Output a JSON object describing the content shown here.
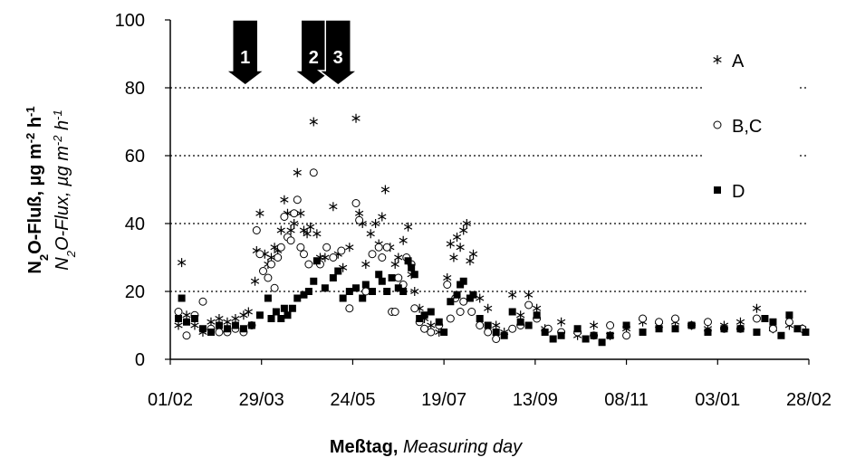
{
  "chart_data": {
    "type": "scatter",
    "xlabel": [
      "Meßtag,",
      "Measuring day"
    ],
    "ylabel": {
      "de": [
        "N",
        "2",
        "O-Fluß, µg m",
        "-2",
        " h",
        "-1"
      ],
      "en": [
        "N",
        "2",
        "O-Flux, µg m",
        "-2",
        " h",
        "-1"
      ]
    },
    "xlim": [
      0,
      392
    ],
    "ylim": [
      0,
      100
    ],
    "xticks": [
      {
        "value": 0,
        "label": "01/02"
      },
      {
        "value": 56,
        "label": "29/03"
      },
      {
        "value": 112,
        "label": "24/05"
      },
      {
        "value": 168,
        "label": "19/07"
      },
      {
        "value": 224,
        "label": "13/09"
      },
      {
        "value": 280,
        "label": "08/11"
      },
      {
        "value": 336,
        "label": "03/01"
      },
      {
        "value": 392,
        "label": "28/02"
      }
    ],
    "yticks": [
      0,
      20,
      40,
      60,
      80,
      100
    ],
    "grid": true,
    "legend": "right",
    "annotations": [
      {
        "label": "1",
        "x": 46
      },
      {
        "label": "2",
        "x": 88
      },
      {
        "label": "3",
        "x": 103
      }
    ],
    "series": [
      {
        "name": "A",
        "marker": "asterisk",
        "color": "#000000",
        "x": [
          5,
          7,
          10,
          15,
          20,
          25,
          30,
          35,
          40,
          45,
          48,
          52,
          53,
          55,
          58,
          60,
          62,
          64,
          66,
          68,
          70,
          72,
          74,
          76,
          78,
          80,
          82,
          84,
          86,
          88,
          90,
          92,
          95,
          100,
          103,
          106,
          110,
          114,
          116,
          118,
          120,
          123,
          126,
          128,
          130,
          132,
          135,
          138,
          140,
          143,
          146,
          148,
          150,
          153,
          156,
          160,
          165,
          170,
          172,
          174,
          176,
          178,
          180,
          182,
          184,
          186,
          190,
          195,
          200,
          205,
          210,
          215,
          220,
          225,
          230,
          240,
          250,
          260,
          270,
          280,
          290,
          300,
          310,
          320,
          330,
          340,
          350,
          360,
          370,
          380,
          388
        ],
        "values": [
          10,
          28.5,
          13,
          10,
          8,
          11,
          12,
          11,
          12,
          13,
          14,
          23,
          32,
          43,
          31,
          28,
          30,
          33,
          32,
          38,
          47,
          43,
          38,
          40,
          55,
          43,
          38,
          37,
          39,
          70,
          37,
          30,
          30,
          45,
          31,
          27,
          33,
          71,
          43,
          40,
          28,
          37,
          40,
          34,
          42,
          50,
          33,
          28,
          30,
          35,
          39,
          25,
          20,
          15,
          12,
          10,
          8,
          24,
          34,
          30,
          36,
          33,
          38,
          40,
          29,
          31,
          18,
          15,
          10,
          8,
          19,
          13,
          19,
          15,
          9,
          11,
          7,
          10,
          7,
          9,
          11,
          10,
          11,
          10,
          9,
          10,
          11,
          15,
          9,
          10,
          9
        ]
      },
      {
        "name": "B,C",
        "marker": "circle",
        "color": "#000000",
        "x": [
          5,
          10,
          15,
          20,
          25,
          30,
          35,
          40,
          45,
          50,
          53,
          55,
          57,
          60,
          62,
          64,
          66,
          68,
          70,
          72,
          74,
          76,
          78,
          80,
          82,
          85,
          88,
          92,
          96,
          100,
          105,
          110,
          114,
          116,
          120,
          124,
          128,
          130,
          133,
          136,
          138,
          140,
          143,
          145,
          148,
          150,
          153,
          156,
          160,
          165,
          170,
          172,
          175,
          178,
          180,
          185,
          190,
          195,
          200,
          210,
          215,
          220,
          225,
          232,
          240,
          250,
          260,
          270,
          280,
          290,
          300,
          310,
          320,
          330,
          340,
          350,
          360,
          370,
          380,
          388
        ],
        "values": [
          14,
          7,
          13,
          17,
          9,
          8,
          8,
          9,
          8,
          10,
          38,
          31,
          26,
          24,
          28,
          21,
          30,
          33,
          42,
          36,
          35,
          43,
          47,
          33,
          31,
          28,
          55,
          28,
          33,
          30,
          32,
          15,
          46,
          41,
          20,
          31,
          33,
          30,
          33,
          14,
          14,
          24,
          22,
          30,
          28,
          15,
          11,
          9,
          8,
          10,
          22,
          12,
          18,
          14,
          17,
          14,
          10,
          8,
          6,
          9,
          10,
          16,
          12,
          9,
          8,
          8,
          7,
          10,
          7,
          12,
          11,
          12,
          10,
          11,
          9,
          9,
          12,
          9,
          11,
          9
        ]
      },
      {
        "name": "D",
        "marker": "square",
        "color": "#000000",
        "x": [
          5,
          7,
          10,
          15,
          20,
          25,
          30,
          35,
          40,
          45,
          50,
          55,
          60,
          62,
          65,
          68,
          70,
          72,
          75,
          78,
          82,
          85,
          88,
          90,
          95,
          100,
          103,
          106,
          110,
          114,
          118,
          120,
          124,
          128,
          130,
          133,
          136,
          140,
          143,
          146,
          148,
          150,
          153,
          156,
          160,
          165,
          168,
          172,
          176,
          178,
          180,
          184,
          186,
          190,
          195,
          200,
          205,
          210,
          215,
          220,
          225,
          230,
          235,
          240,
          250,
          255,
          260,
          265,
          270,
          280,
          290,
          300,
          310,
          320,
          330,
          340,
          350,
          360,
          365,
          370,
          375,
          380,
          385,
          390
        ],
        "values": [
          12,
          18,
          11,
          12,
          9,
          8,
          10,
          9,
          10,
          9,
          10,
          13,
          18,
          12,
          14,
          12,
          15,
          13,
          15,
          18,
          19,
          20,
          23,
          29,
          21,
          24,
          26,
          18,
          20,
          21,
          18,
          22,
          20,
          25,
          23,
          20,
          24,
          21,
          20,
          29,
          27,
          25,
          12,
          13,
          14,
          11,
          8,
          17,
          19,
          22,
          23,
          18,
          19,
          12,
          10,
          8,
          7,
          14,
          11,
          10,
          13,
          8,
          6,
          7,
          9,
          6,
          7,
          5,
          7,
          10,
          8,
          9,
          9,
          10,
          8,
          9,
          9,
          8,
          12,
          11,
          7,
          13,
          9,
          8
        ]
      }
    ]
  }
}
